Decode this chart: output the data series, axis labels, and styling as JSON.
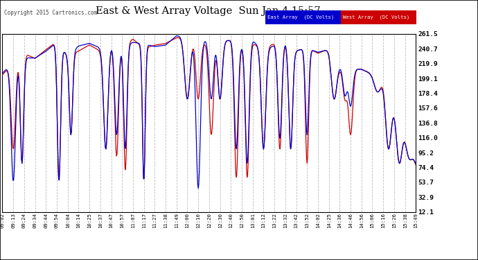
{
  "title": "East & West Array Voltage  Sun Jan 4 15:57",
  "copyright": "Copyright 2015 Cartronics.com",
  "legend_east": "East Array  (DC Volts)",
  "legend_west": "West Array  (DC Volts)",
  "color_east": "#0000cc",
  "color_west": "#cc0000",
  "yticks": [
    12.1,
    32.9,
    53.7,
    74.4,
    95.2,
    116.0,
    136.8,
    157.6,
    178.4,
    199.1,
    219.9,
    240.7,
    261.5
  ],
  "ymin": 12.1,
  "ymax": 261.5,
  "xtick_labels": [
    "09:02",
    "09:13",
    "09:24",
    "09:34",
    "09:44",
    "09:54",
    "10:04",
    "10:14",
    "10:25",
    "10:37",
    "10:47",
    "10:57",
    "11:07",
    "11:17",
    "11:27",
    "11:38",
    "11:49",
    "12:00",
    "12:10",
    "12:20",
    "12:30",
    "12:40",
    "12:50",
    "13:01",
    "13:12",
    "13:22",
    "13:32",
    "13:42",
    "13:52",
    "14:02",
    "14:25",
    "14:36",
    "14:46",
    "14:56",
    "15:06",
    "15:16",
    "15:26",
    "15:38",
    "15:49"
  ],
  "grid_color": "#aaaaaa",
  "fig_bg": "#ffffff",
  "plot_bg": "#ffffff"
}
